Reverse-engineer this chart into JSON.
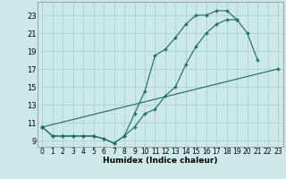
{
  "xlabel": "Humidex (Indice chaleur)",
  "bg_color": "#cce8e8",
  "grid_color": "#aacccc",
  "line_color": "#1a6b5a",
  "xlim_min": -0.5,
  "xlim_max": 23.5,
  "ylim_min": 8.3,
  "ylim_max": 24.5,
  "xticks": [
    0,
    1,
    2,
    3,
    4,
    5,
    6,
    7,
    8,
    9,
    10,
    11,
    12,
    13,
    14,
    15,
    16,
    17,
    18,
    19,
    20,
    21,
    22,
    23
  ],
  "yticks": [
    9,
    11,
    13,
    15,
    17,
    19,
    21,
    23
  ],
  "line1_x": [
    0,
    1,
    2,
    3,
    4,
    5,
    6,
    7,
    8,
    9,
    10,
    11,
    12,
    13,
    14,
    15,
    16,
    17,
    18,
    19,
    20,
    21
  ],
  "line1_y": [
    10.5,
    9.5,
    9.5,
    9.5,
    9.5,
    9.5,
    9.2,
    8.7,
    9.5,
    12.0,
    14.5,
    18.5,
    19.2,
    20.5,
    22.0,
    23.0,
    23.0,
    23.5,
    23.5,
    22.5,
    21.0,
    18.0
  ],
  "line2_x": [
    0,
    1,
    2,
    3,
    4,
    5,
    6,
    7,
    8,
    9,
    10,
    11,
    12,
    13,
    14,
    15,
    16,
    17,
    18,
    19
  ],
  "line2_y": [
    10.5,
    9.5,
    9.5,
    9.5,
    9.5,
    9.5,
    9.2,
    8.7,
    9.5,
    10.5,
    12.0,
    12.5,
    14.0,
    15.0,
    17.5,
    19.5,
    21.0,
    22.0,
    22.5,
    22.5
  ],
  "line3_x": [
    0,
    23
  ],
  "line3_y": [
    10.5,
    17.0
  ]
}
